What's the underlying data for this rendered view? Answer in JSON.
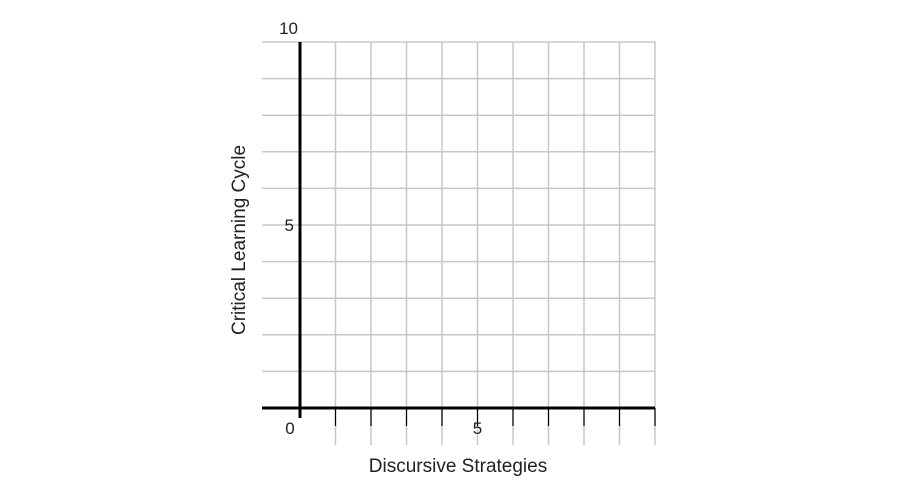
{
  "chart_data": {
    "type": "scatter",
    "title": "",
    "xlabel": "Discursive Strategies",
    "ylabel": "Critical Learning Cycle",
    "xlim": [
      0,
      10
    ],
    "ylim": [
      0,
      10
    ],
    "x_ticks": [
      {
        "value": 0,
        "label": "0"
      },
      {
        "value": 5,
        "label": "5"
      }
    ],
    "y_ticks": [
      {
        "value": 5,
        "label": "5"
      },
      {
        "value": 10,
        "label": "10"
      }
    ],
    "grid": true,
    "grid_step": 1,
    "series": []
  },
  "colors": {
    "grid": "#c8c8c8",
    "axis": "#000000",
    "text": "#222222"
  }
}
